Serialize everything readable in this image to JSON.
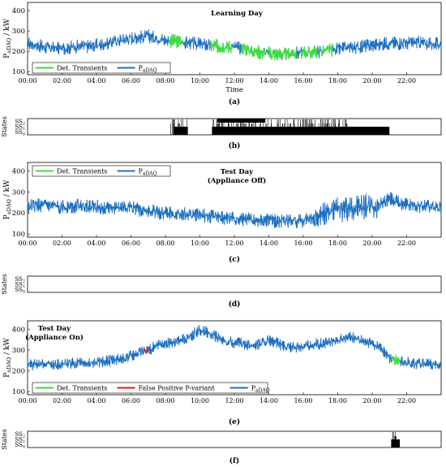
{
  "time_ticks": [
    "00:00",
    "02:00",
    "04:00",
    "06:00",
    "08:00",
    "10:00",
    "12:00",
    "14:00",
    "16:00",
    "18:00",
    "20:00",
    "22:00"
  ],
  "colors": {
    "pdaq": "#1f70c1",
    "transient": "#3ddc3d",
    "false_positive": "#e41a1c",
    "state_fill": "#000000"
  },
  "chart_data": [
    {
      "panel": "a",
      "type": "line",
      "caption": "(a)",
      "title": "Learning Day",
      "xlabel": "Time",
      "ylabel": "P_aDAQ / kW",
      "xlim": [
        0,
        24
      ],
      "ylim": [
        85,
        440
      ],
      "yticks": [
        100,
        200,
        300,
        400
      ],
      "legend": [
        {
          "label": "Det. Transients",
          "color": "#3ddc3d"
        },
        {
          "label": "P_aDAQ",
          "color": "#1f70c1"
        }
      ],
      "series": [
        {
          "name": "P_aDAQ",
          "color": "#1f70c1",
          "x": [
            0,
            0.5,
            1,
            1.5,
            2,
            2.5,
            3,
            3.5,
            4,
            4.5,
            5,
            5.5,
            6,
            6.5,
            7,
            7.5,
            8,
            8.5,
            9,
            9.5,
            10,
            10.5,
            11,
            11.5,
            12,
            12.5,
            13,
            13.5,
            14,
            14.5,
            15,
            15.5,
            16,
            16.5,
            17,
            17.5,
            18,
            18.5,
            19,
            19.5,
            20,
            20.5,
            21,
            21.5,
            22,
            22.5,
            23,
            23.5,
            24
          ],
          "y": [
            240,
            230,
            220,
            215,
            215,
            220,
            225,
            225,
            230,
            235,
            250,
            255,
            265,
            270,
            275,
            265,
            255,
            250,
            245,
            240,
            235,
            230,
            225,
            225,
            220,
            215,
            205,
            195,
            190,
            185,
            185,
            190,
            195,
            195,
            200,
            205,
            210,
            215,
            220,
            225,
            230,
            235,
            240,
            240,
            240,
            245,
            240,
            235,
            235
          ],
          "noise": 30
        },
        {
          "name": "Det. Transients",
          "color": "#3ddc3d",
          "segments": [
            [
              8.2,
              9.0
            ],
            [
              10.6,
              11.9
            ],
            [
              12.4,
              13.8
            ],
            [
              14.0,
              15.6
            ],
            [
              15.9,
              16.8
            ],
            [
              17.0,
              17.7
            ]
          ]
        }
      ]
    },
    {
      "panel": "b",
      "type": "state",
      "caption": "(b)",
      "ylabel": "States",
      "state_labels": [
        "SS2",
        "SS1",
        "SS0"
      ],
      "blocks": [
        [
          8.5,
          9.3
        ],
        [
          10.7,
          21.0
        ]
      ],
      "spike_ranges": [
        [
          8.3,
          9.3
        ],
        [
          10.7,
          18.6
        ]
      ]
    },
    {
      "panel": "c",
      "type": "line",
      "caption": "(c)",
      "title": [
        "Test Day",
        "(Appliance Off)"
      ],
      "xlabel": "",
      "ylabel": "P_aDAQ / kW",
      "xlim": [
        0,
        24
      ],
      "ylim": [
        85,
        440
      ],
      "yticks": [
        100,
        200,
        300,
        400
      ],
      "legend": [
        {
          "label": "Det. Transients",
          "color": "#3ddc3d"
        },
        {
          "label": "P_aDAQ",
          "color": "#1f70c1"
        }
      ],
      "series": [
        {
          "name": "P_aDAQ",
          "color": "#1f70c1",
          "x": [
            0,
            0.5,
            1,
            1.5,
            2,
            2.5,
            3,
            3.5,
            4,
            4.5,
            5,
            5.5,
            6,
            6.5,
            7,
            7.5,
            8,
            8.5,
            9,
            9.5,
            10,
            10.5,
            11,
            11.5,
            12,
            12.5,
            13,
            13.5,
            14,
            14.5,
            15,
            15.5,
            16,
            16.5,
            17,
            17.5,
            18,
            18.5,
            19,
            19.5,
            20,
            20.5,
            21,
            21.5,
            22,
            22.5,
            23,
            23.5,
            24
          ],
          "y": [
            230,
            235,
            235,
            230,
            230,
            230,
            235,
            235,
            230,
            225,
            225,
            225,
            230,
            215,
            210,
            205,
            200,
            195,
            195,
            190,
            190,
            185,
            180,
            175,
            175,
            170,
            170,
            165,
            165,
            160,
            160,
            160,
            165,
            170,
            200,
            205,
            215,
            220,
            225,
            230,
            230,
            240,
            270,
            250,
            240,
            235,
            230,
            228,
            225
          ],
          "noise": 30
        }
      ]
    },
    {
      "panel": "d",
      "type": "state",
      "caption": "(d)",
      "ylabel": "States",
      "state_labels": [
        "SS2",
        "SS1",
        "SS0"
      ],
      "blocks": [],
      "spike_ranges": []
    },
    {
      "panel": "e",
      "type": "line",
      "caption": "(e)",
      "title": [
        "Test Day",
        "(Appliance On)"
      ],
      "xlabel": "",
      "ylabel": "P_aDAQ / kW",
      "xlim": [
        0,
        24
      ],
      "ylim": [
        85,
        440
      ],
      "yticks": [
        100,
        200,
        300,
        400
      ],
      "legend": [
        {
          "label": "Det. Transients",
          "color": "#3ddc3d"
        },
        {
          "label": "False Positive P-variant",
          "color": "#e41a1c"
        },
        {
          "label": "P_aDAQ",
          "color": "#1f70c1"
        }
      ],
      "series": [
        {
          "name": "P_aDAQ",
          "color": "#1f70c1",
          "x": [
            0,
            0.5,
            1,
            1.5,
            2,
            2.5,
            3,
            3.5,
            4,
            4.5,
            5,
            5.5,
            6,
            6.5,
            7,
            7.5,
            8,
            8.5,
            9,
            9.5,
            10,
            10.5,
            11,
            11.5,
            12,
            12.5,
            13,
            13.5,
            14,
            14.5,
            15,
            15.5,
            16,
            16.5,
            17,
            17.5,
            18,
            18.5,
            19,
            19.5,
            20,
            20.5,
            21,
            21.5,
            22,
            22.5,
            23,
            23.5,
            24
          ],
          "y": [
            228,
            228,
            230,
            230,
            232,
            235,
            235,
            235,
            240,
            245,
            250,
            260,
            270,
            285,
            300,
            320,
            330,
            340,
            350,
            370,
            395,
            385,
            360,
            340,
            335,
            330,
            325,
            330,
            345,
            330,
            310,
            315,
            320,
            325,
            330,
            335,
            350,
            360,
            355,
            340,
            330,
            310,
            260,
            245,
            240,
            235,
            232,
            230,
            228
          ],
          "noise": 25
        },
        {
          "name": "Det. Transients",
          "color": "#3ddc3d",
          "segments": [
            [
              21.1,
              21.6
            ]
          ]
        },
        {
          "name": "False Positive P-variant",
          "color": "#e41a1c",
          "segments": [
            [
              6.8,
              7.0
            ]
          ]
        }
      ]
    },
    {
      "panel": "f",
      "type": "state",
      "caption": "(f)",
      "ylabel": "States",
      "state_labels": [
        "SS2",
        "SS1",
        "SS0"
      ],
      "blocks": [
        [
          21.1,
          21.6
        ]
      ],
      "spike_ranges": [
        [
          21.1,
          21.5
        ]
      ]
    }
  ]
}
